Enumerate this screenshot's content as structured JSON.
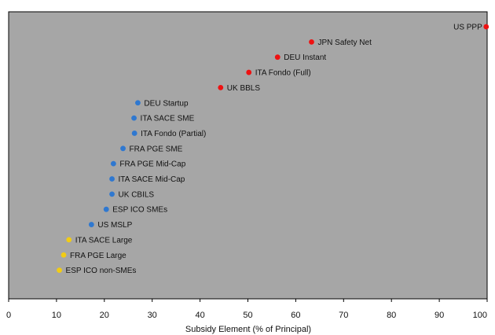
{
  "chart_data": {
    "type": "scatter",
    "title": "",
    "xlabel": "Subsidy Element (% of Principal)",
    "ylabel": "",
    "xlim": [
      0,
      100
    ],
    "x_ticks": [
      0,
      10,
      20,
      30,
      40,
      50,
      60,
      70,
      80,
      90,
      100
    ],
    "grid": false,
    "colors": {
      "red": "#ee1111",
      "blue": "#2f78d0",
      "yellow": "#f2cc14",
      "plot_bg": "#a6a6a6"
    },
    "points": [
      {
        "label": "US PPP",
        "x": 99.8,
        "color": "red"
      },
      {
        "label": "JPN Safety Net",
        "x": 63.3,
        "color": "red"
      },
      {
        "label": "DEU Instant",
        "x": 56.2,
        "color": "red"
      },
      {
        "label": "ITA Fondo (Full)",
        "x": 50.2,
        "color": "red"
      },
      {
        "label": "UK BBLS",
        "x": 44.3,
        "color": "red"
      },
      {
        "label": "DEU Startup",
        "x": 27.0,
        "color": "blue"
      },
      {
        "label": "ITA SACE SME",
        "x": 26.2,
        "color": "blue"
      },
      {
        "label": "ITA Fondo (Partial)",
        "x": 26.3,
        "color": "blue"
      },
      {
        "label": "FRA PGE SME",
        "x": 23.9,
        "color": "blue"
      },
      {
        "label": "FRA PGE Mid-Cap",
        "x": 21.9,
        "color": "blue"
      },
      {
        "label": "ITA SACE Mid-Cap",
        "x": 21.6,
        "color": "blue"
      },
      {
        "label": "UK CBILS",
        "x": 21.6,
        "color": "blue"
      },
      {
        "label": "ESP ICO SMEs",
        "x": 20.4,
        "color": "blue"
      },
      {
        "label": "US MSLP",
        "x": 17.3,
        "color": "blue"
      },
      {
        "label": "ITA SACE Large",
        "x": 12.6,
        "color": "yellow"
      },
      {
        "label": "FRA PGE Large",
        "x": 11.5,
        "color": "yellow"
      },
      {
        "label": "ESP ICO non-SMEs",
        "x": 10.6,
        "color": "yellow"
      }
    ]
  }
}
